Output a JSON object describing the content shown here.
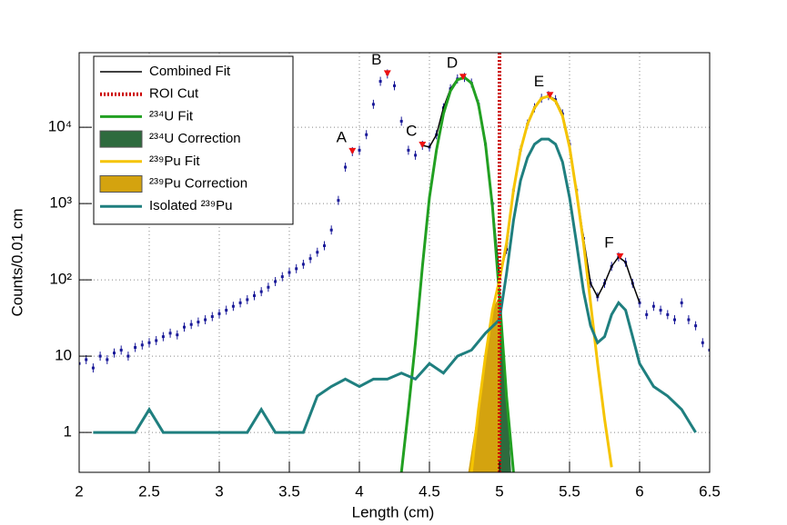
{
  "chart_data": {
    "type": "line",
    "xlabel": "Length (cm)",
    "ylabel": "Counts/0.01 cm",
    "xlim": [
      2,
      6.5
    ],
    "ylim": [
      0.3,
      95000
    ],
    "log_y": true,
    "grid": true,
    "xticks": [
      2,
      2.5,
      3,
      3.5,
      4,
      4.5,
      5,
      5.5,
      6,
      6.5
    ],
    "yticks": [
      1,
      10,
      {
        "value": 100,
        "label": "10²"
      },
      {
        "value": 1000,
        "label": "10³"
      },
      {
        "value": 10000,
        "label": "10⁴"
      }
    ],
    "legend": "top-left",
    "series": [
      {
        "name": "Combined Fit",
        "style": "line",
        "color": "#000000",
        "x": [
          4.45,
          4.5,
          4.55,
          4.6,
          4.65,
          4.7,
          4.75,
          4.8,
          4.85,
          4.9,
          4.95,
          5.0,
          5.05,
          5.1,
          5.15,
          5.2,
          5.25,
          5.3,
          5.35,
          5.4,
          5.45,
          5.5,
          5.55,
          5.6,
          5.65,
          5.7,
          5.75,
          5.8,
          5.85,
          5.9,
          5.95,
          6.0
        ],
        "values": [
          5800,
          5500,
          8000,
          18000,
          32000,
          43000,
          45000,
          38000,
          20000,
          6000,
          1000,
          110,
          250,
          1500,
          5000,
          11000,
          18000,
          24000,
          26000,
          23000,
          15000,
          6000,
          1500,
          350,
          90,
          60,
          90,
          150,
          200,
          170,
          90,
          50
        ]
      },
      {
        "name": "ROI Cut",
        "style": "vline",
        "color": "#cc0000",
        "x": 5
      },
      {
        "name": "²³⁴U Fit",
        "style": "line",
        "color": "#22a022",
        "x": [
          4.3,
          4.35,
          4.4,
          4.45,
          4.5,
          4.55,
          4.6,
          4.65,
          4.7,
          4.75,
          4.8,
          4.85,
          4.9,
          4.95,
          5.0,
          5.05,
          5.1
        ],
        "values": [
          0.3,
          2,
          15,
          150,
          1200,
          5000,
          15000,
          30000,
          42000,
          45000,
          38000,
          20000,
          6000,
          900,
          60,
          3,
          0.3
        ]
      },
      {
        "name": "²³⁴U Correction",
        "style": "area",
        "color": "#2e6b3e",
        "x": [
          5.0,
          5.03,
          5.06,
          5.08
        ],
        "values": [
          60,
          10,
          1.5,
          0.3
        ]
      },
      {
        "name": "²³⁹Pu Fit",
        "style": "line",
        "color": "#f5c400",
        "x": [
          4.8,
          4.85,
          4.9,
          4.95,
          5.0,
          5.05,
          5.1,
          5.15,
          5.2,
          5.25,
          5.3,
          5.35,
          5.4,
          5.45,
          5.5,
          5.55,
          5.6,
          5.65,
          5.7,
          5.75,
          5.8
        ],
        "values": [
          0.3,
          2,
          10,
          40,
          100,
          300,
          1500,
          5000,
          11000,
          18000,
          24000,
          25500,
          22000,
          14000,
          5500,
          1400,
          300,
          50,
          8,
          1.5,
          0.35
        ]
      },
      {
        "name": "²³⁹Pu Correction",
        "style": "area",
        "color": "#d4a30f",
        "x": [
          4.78,
          4.85,
          4.9,
          4.95,
          5.0
        ],
        "values": [
          0.3,
          2,
          10,
          40,
          60
        ]
      },
      {
        "name": "Isolated ²³⁹Pu",
        "style": "line",
        "color": "#1f7f7f",
        "x": [
          2.1,
          2.2,
          2.3,
          2.4,
          2.5,
          2.6,
          2.7,
          2.8,
          2.9,
          3.0,
          3.1,
          3.2,
          3.3,
          3.4,
          3.5,
          3.6,
          3.7,
          3.8,
          3.9,
          4.0,
          4.1,
          4.2,
          4.3,
          4.4,
          4.5,
          4.6,
          4.7,
          4.8,
          4.9,
          5.0,
          5.05,
          5.1,
          5.15,
          5.2,
          5.25,
          5.3,
          5.35,
          5.4,
          5.45,
          5.5,
          5.55,
          5.6,
          5.65,
          5.7,
          5.75,
          5.8,
          5.85,
          5.9,
          5.95,
          6.0,
          6.1,
          6.2,
          6.3,
          6.4
        ],
        "values": [
          1,
          1,
          1,
          1,
          2,
          1,
          1,
          1,
          1,
          1,
          1,
          1,
          2,
          1,
          1,
          1,
          3,
          4,
          5,
          4,
          5,
          5,
          6,
          5,
          8,
          6,
          10,
          12,
          20,
          30,
          120,
          600,
          2000,
          4000,
          6000,
          7000,
          7000,
          6000,
          3500,
          1200,
          300,
          70,
          25,
          15,
          18,
          35,
          50,
          40,
          18,
          8,
          4,
          3,
          2,
          1
        ]
      },
      {
        "style": "points",
        "color": "#1a1a99",
        "x": [
          2.0,
          2.05,
          2.1,
          2.15,
          2.2,
          2.25,
          2.3,
          2.35,
          2.4,
          2.45,
          2.5,
          2.55,
          2.6,
          2.65,
          2.7,
          2.75,
          2.8,
          2.85,
          2.9,
          2.95,
          3.0,
          3.05,
          3.1,
          3.15,
          3.2,
          3.25,
          3.3,
          3.35,
          3.4,
          3.45,
          3.5,
          3.55,
          3.6,
          3.65,
          3.7,
          3.75,
          3.8,
          3.85,
          3.9,
          3.95,
          4.0,
          4.05,
          4.1,
          4.15,
          4.2,
          4.25,
          4.3,
          4.35,
          4.4,
          4.45,
          4.5,
          4.55,
          4.6,
          4.65,
          4.7,
          4.75,
          4.8,
          4.85,
          4.9,
          4.95,
          5.0,
          5.05,
          5.1,
          5.15,
          5.2,
          5.25,
          5.3,
          5.35,
          5.4,
          5.45,
          5.5,
          5.55,
          5.6,
          5.65,
          5.7,
          5.75,
          5.8,
          5.85,
          5.9,
          5.95,
          6.0,
          6.05,
          6.1,
          6.15,
          6.2,
          6.25,
          6.3,
          6.35,
          6.4,
          6.45,
          6.5
        ],
        "values": [
          8,
          9,
          7,
          10,
          9,
          11,
          12,
          10,
          13,
          14,
          15,
          16,
          18,
          20,
          19,
          24,
          26,
          28,
          30,
          33,
          36,
          40,
          45,
          50,
          55,
          62,
          70,
          80,
          95,
          110,
          125,
          140,
          160,
          190,
          230,
          280,
          450,
          1100,
          3000,
          4800,
          5000,
          8000,
          20000,
          40000,
          50000,
          35000,
          12000,
          5000,
          4300,
          5800,
          5500,
          8000,
          18000,
          32000,
          43000,
          45000,
          38000,
          20000,
          6000,
          1000,
          110,
          250,
          1500,
          5000,
          11000,
          18000,
          24000,
          26000,
          23000,
          15000,
          6000,
          1500,
          350,
          90,
          60,
          90,
          150,
          200,
          170,
          90,
          50,
          35,
          45,
          40,
          35,
          30,
          50,
          30,
          25,
          15,
          12
        ]
      }
    ],
    "annotations": [
      {
        "text": "A",
        "x": 3.95,
        "y": 4800
      },
      {
        "text": "B",
        "x": 4.2,
        "y": 50000
      },
      {
        "text": "C",
        "x": 4.45,
        "y": 5800
      },
      {
        "text": "D",
        "x": 4.74,
        "y": 45000
      },
      {
        "text": "E",
        "x": 5.36,
        "y": 26000
      },
      {
        "text": "F",
        "x": 5.86,
        "y": 200
      }
    ]
  }
}
